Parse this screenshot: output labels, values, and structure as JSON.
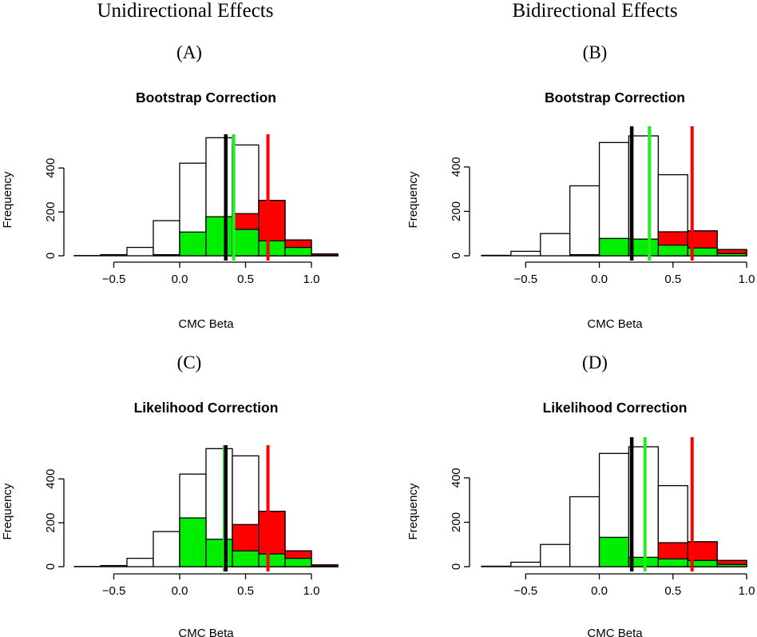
{
  "column_headings": {
    "left": "Unidirectional Effects",
    "right": "Bidirectional Effects"
  },
  "colors": {
    "red": "#ff0000",
    "green": "#00ee00",
    "outline": "#000000",
    "vline_black": "#000000",
    "vline_green": "#22ee22",
    "vline_red": "#ff0000"
  },
  "chart_data": [
    {
      "type": "histogram",
      "panel": "(A)",
      "title": "Bootstrap Correction",
      "xlabel": "CMC Beta",
      "ylabel": "Frequency",
      "xlim": [
        -0.8,
        1.2
      ],
      "ylim": [
        0,
        510
      ],
      "xticks": [
        -0.5,
        0.0,
        0.5,
        1.0
      ],
      "xtick_labels": [
        "−0.5",
        "0.0",
        "0.5",
        "1.0"
      ],
      "yticks": [
        0,
        200,
        400
      ],
      "yticks_labels": [
        "0",
        "200",
        "400"
      ],
      "bin_edges": [
        -0.8,
        -0.6,
        -0.4,
        -0.2,
        0.0,
        0.2,
        0.4,
        0.6,
        0.8,
        1.0,
        1.2
      ],
      "total_counts": [
        1,
        5,
        38,
        160,
        422,
        538,
        505,
        252,
        72,
        8
      ],
      "red_counts": [
        0,
        0,
        0,
        0,
        0,
        0,
        192,
        252,
        72,
        8
      ],
      "green_counts": [
        0,
        0,
        0,
        5,
        108,
        178,
        120,
        68,
        38,
        2
      ],
      "vlines": {
        "black": 0.35,
        "green": 0.41,
        "red": 0.67
      }
    },
    {
      "type": "histogram",
      "panel": "(B)",
      "title": "Bootstrap Correction",
      "xlabel": "CMC Beta",
      "ylabel": "Frequency",
      "xlim": [
        -0.8,
        1.0
      ],
      "ylim": [
        0,
        540
      ],
      "xticks": [
        -0.5,
        0.0,
        0.5,
        1.0
      ],
      "xtick_labels": [
        "−0.5",
        "0.0",
        "0.5",
        "1.0"
      ],
      "yticks": [
        0,
        200,
        400
      ],
      "yticks_labels": [
        "0",
        "200",
        "400"
      ],
      "bin_edges": [
        -0.8,
        -0.6,
        -0.4,
        -0.2,
        0.0,
        0.2,
        0.4,
        0.6,
        0.8,
        1.0
      ],
      "total_counts": [
        2,
        20,
        100,
        315,
        510,
        540,
        365,
        112,
        28
      ],
      "red_counts": [
        0,
        0,
        0,
        0,
        0,
        0,
        108,
        112,
        28
      ],
      "green_counts": [
        0,
        0,
        0,
        5,
        78,
        75,
        48,
        35,
        10
      ],
      "vlines": {
        "black": 0.22,
        "green": 0.34,
        "red": 0.63
      }
    },
    {
      "type": "histogram",
      "panel": "(C)",
      "title": "Likelihood Correction",
      "xlabel": "CMC Beta",
      "ylabel": "Frequency",
      "xlim": [
        -0.8,
        1.2
      ],
      "ylim": [
        0,
        510
      ],
      "xticks": [
        -0.5,
        0.0,
        0.5,
        1.0
      ],
      "xtick_labels": [
        "−0.5",
        "0.0",
        "0.5",
        "1.0"
      ],
      "yticks": [
        0,
        200,
        400
      ],
      "yticks_labels": [
        "0",
        "200",
        "400"
      ],
      "bin_edges": [
        -0.8,
        -0.6,
        -0.4,
        -0.2,
        0.0,
        0.2,
        0.4,
        0.6,
        0.8,
        1.0,
        1.2
      ],
      "total_counts": [
        1,
        5,
        38,
        160,
        422,
        538,
        505,
        252,
        72,
        8
      ],
      "red_counts": [
        0,
        0,
        0,
        0,
        0,
        0,
        192,
        252,
        72,
        8
      ],
      "green_counts": [
        0,
        0,
        0,
        0,
        222,
        125,
        72,
        58,
        38,
        2
      ],
      "vlines": {
        "black": 0.35,
        "green": 0.34,
        "red": 0.67
      }
    },
    {
      "type": "histogram",
      "panel": "(D)",
      "title": "Likelihood Correction",
      "xlabel": "CMC Beta",
      "ylabel": "Frequency",
      "xlim": [
        -0.8,
        1.0
      ],
      "ylim": [
        0,
        540
      ],
      "xticks": [
        -0.5,
        0.0,
        0.5,
        1.0
      ],
      "xtick_labels": [
        "−0.5",
        "0.0",
        "0.5",
        "1.0"
      ],
      "yticks": [
        0,
        200,
        400
      ],
      "yticks_labels": [
        "0",
        "200",
        "400"
      ],
      "bin_edges": [
        -0.8,
        -0.6,
        -0.4,
        -0.2,
        0.0,
        0.2,
        0.4,
        0.6,
        0.8,
        1.0
      ],
      "total_counts": [
        2,
        20,
        100,
        315,
        510,
        540,
        365,
        112,
        28
      ],
      "red_counts": [
        0,
        0,
        0,
        0,
        0,
        0,
        108,
        112,
        28
      ],
      "green_counts": [
        0,
        0,
        0,
        0,
        132,
        42,
        35,
        28,
        10
      ],
      "vlines": {
        "black": 0.22,
        "green": 0.31,
        "red": 0.63
      }
    }
  ]
}
